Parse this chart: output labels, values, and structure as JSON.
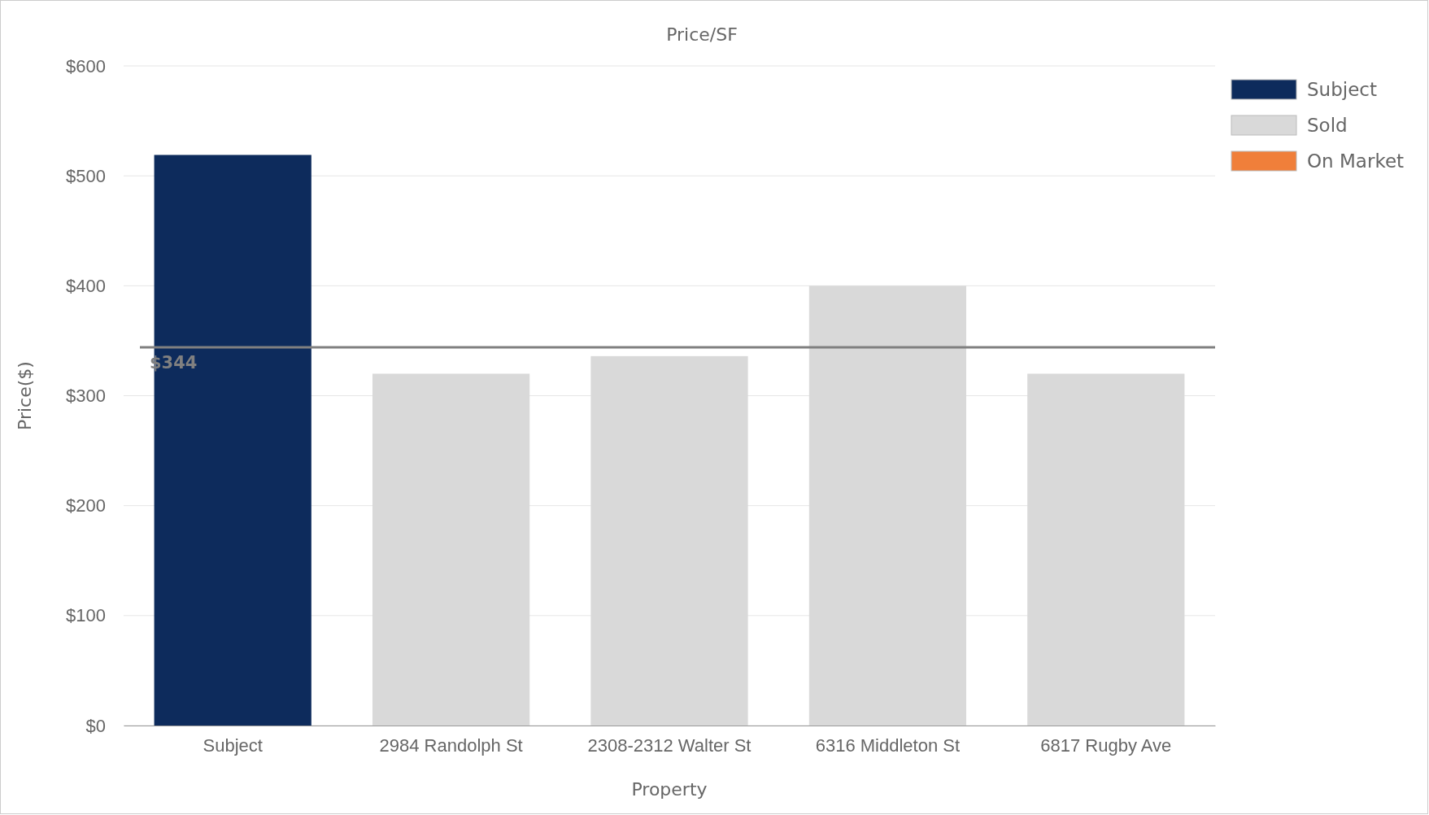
{
  "chart_data": {
    "type": "bar",
    "title": "Price/SF",
    "xlabel": "Property",
    "ylabel": "Price($)",
    "categories": [
      "Subject",
      "2984 Randolph St",
      "2308-2312 Walter St",
      "6316 Middleton St",
      "6817 Rugby Ave"
    ],
    "series": [
      {
        "name": "Subject",
        "color": "#0d2b5c",
        "values": [
          519,
          null,
          null,
          null,
          null
        ]
      },
      {
        "name": "Sold",
        "color": "#d9d9d9",
        "values": [
          null,
          320,
          336,
          400,
          320
        ]
      },
      {
        "name": "On Market",
        "color": "#f07f3a",
        "values": [
          null,
          null,
          null,
          null,
          null
        ]
      }
    ],
    "stacked": true,
    "ylim": [
      0,
      600
    ],
    "yticks": [
      {
        "value": 0,
        "label": "$0"
      },
      {
        "value": 100,
        "label": "$100"
      },
      {
        "value": 200,
        "label": "$200"
      },
      {
        "value": 300,
        "label": "$300"
      },
      {
        "value": 400,
        "label": "$400"
      },
      {
        "value": 500,
        "label": "$500"
      },
      {
        "value": 600,
        "label": "$600"
      }
    ],
    "ref_lines": [
      {
        "axis": "y",
        "value": 344,
        "label": "$344",
        "color": "#808080"
      }
    ],
    "grid": "y",
    "legend": "top right"
  }
}
